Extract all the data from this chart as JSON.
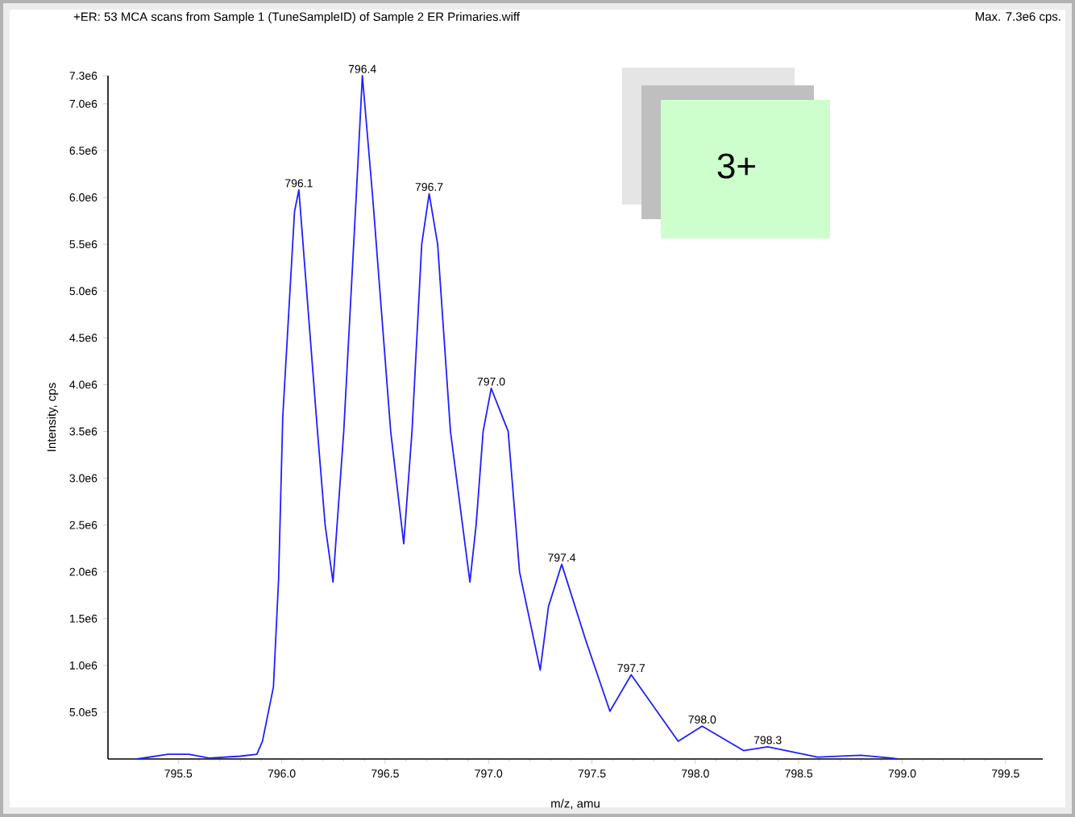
{
  "chart_data": {
    "type": "line",
    "title": "+ER: 53 MCA scans from Sample 1 (TuneSampleID) of Sample 2 ER Primaries.wiff",
    "xlabel": "m/z, amu",
    "ylabel": "Intensity, cps",
    "x": [
      795.3,
      795.45,
      795.55,
      795.65,
      795.8,
      795.88,
      795.907,
      795.96,
      795.985,
      796.005,
      796.062,
      796.083,
      796.173,
      796.21,
      796.248,
      796.3,
      796.36,
      796.39,
      796.44,
      796.527,
      796.59,
      796.63,
      796.677,
      796.713,
      796.754,
      796.816,
      796.91,
      796.94,
      796.974,
      797.013,
      797.095,
      797.15,
      797.25,
      797.29,
      797.354,
      797.47,
      797.587,
      797.69,
      797.917,
      798.033,
      798.233,
      798.35,
      798.59,
      798.8,
      798.95,
      798.98
    ],
    "series": [
      {
        "color": "#1f1fff",
        "values": [
          0,
          50000,
          50000,
          10000,
          30000,
          50000,
          190000,
          770000,
          1920000,
          3650000,
          5850000,
          6080000,
          3500000,
          2500000,
          1890000,
          3500000,
          6000000,
          7300000,
          6000000,
          3500000,
          2300000,
          3500000,
          5500000,
          6040000,
          5500000,
          3500000,
          1890000,
          2500000,
          3500000,
          3960000,
          3500000,
          2000000,
          950000,
          1630000,
          2080000,
          1270000,
          510000,
          900000,
          190000,
          350000,
          90000,
          130000,
          20000,
          40000,
          10000,
          0
        ]
      }
    ],
    "xlim": [
      795.16,
      799.68
    ],
    "xticks": [
      795.5,
      {
        "value": 796,
        "label": "796.0"
      },
      796.5,
      {
        "value": 797,
        "label": "797.0"
      },
      797.5,
      {
        "value": 798,
        "label": "798.0"
      },
      798.5,
      {
        "value": 799,
        "label": "799.0"
      },
      799.5
    ],
    "ylim": [
      0,
      7300000
    ],
    "yticks": [
      {
        "value": 500000,
        "label": "5.0e5"
      },
      {
        "value": 1000000,
        "label": "1.0e6"
      },
      {
        "value": 1500000,
        "label": "1.5e6"
      },
      {
        "value": 2000000,
        "label": "2.0e6"
      },
      {
        "value": 2500000,
        "label": "2.5e6"
      },
      {
        "value": 3000000,
        "label": "3.0e6"
      },
      {
        "value": 3500000,
        "label": "3.5e6"
      },
      {
        "value": 4000000,
        "label": "4.0e6"
      },
      {
        "value": 4500000,
        "label": "4.5e6"
      },
      {
        "value": 5000000,
        "label": "5.0e6"
      },
      {
        "value": 5500000,
        "label": "5.5e6"
      },
      {
        "value": 6000000,
        "label": "6.0e6"
      },
      {
        "value": 6500000,
        "label": "6.5e6"
      },
      {
        "value": 7000000,
        "label": "7.0e6"
      },
      {
        "value": 7300000,
        "label": "7.3e6"
      }
    ],
    "annotations": [
      "Max. 7.3e6 cps.",
      "3+",
      {
        "text": "796.1",
        "x": 796.083,
        "y": 6080000
      },
      {
        "text": "796.4",
        "x": 796.39,
        "y": 7300000
      },
      {
        "text": "796.7",
        "x": 796.713,
        "y": 6040000
      },
      {
        "text": "797.0",
        "x": 797.013,
        "y": 3960000
      },
      {
        "text": "797.4",
        "x": 797.354,
        "y": 2080000
      },
      {
        "text": "797.7",
        "x": 797.69,
        "y": 900000
      },
      {
        "text": "798.0",
        "x": 798.033,
        "y": 350000
      },
      {
        "text": "798.3",
        "x": 798.35,
        "y": 130000
      }
    ],
    "grid": false,
    "marker": "none",
    "line_style": "solid"
  }
}
